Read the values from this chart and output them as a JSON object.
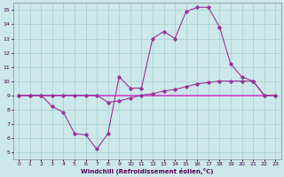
{
  "xlabel": "Windchill (Refroidissement éolien,°C)",
  "bg_color": "#cce8ea",
  "grid_color": "#aacccc",
  "line_color1": "#993399",
  "line_color2": "#993399",
  "line_color3": "#cc44cc",
  "xlim": [
    -0.5,
    23.5
  ],
  "ylim": [
    4.5,
    15.5
  ],
  "xticks": [
    0,
    1,
    2,
    3,
    4,
    5,
    6,
    7,
    8,
    9,
    10,
    11,
    12,
    13,
    14,
    15,
    16,
    17,
    18,
    19,
    20,
    21,
    22,
    23
  ],
  "yticks": [
    5,
    6,
    7,
    8,
    9,
    10,
    11,
    12,
    13,
    14,
    15
  ],
  "line1_x": [
    0,
    1,
    2,
    3,
    4,
    5,
    6,
    7,
    8,
    9,
    10,
    11,
    12,
    13,
    14,
    15,
    16,
    17,
    18,
    19,
    20,
    21,
    22,
    23
  ],
  "line1_y": [
    9.0,
    9.0,
    9.0,
    8.2,
    7.8,
    6.3,
    6.2,
    5.2,
    6.3,
    10.3,
    9.5,
    9.5,
    13.0,
    13.5,
    13.0,
    14.9,
    15.2,
    15.2,
    13.8,
    11.2,
    10.3,
    10.0,
    9.0,
    9.0
  ],
  "line2_x": [
    0,
    1,
    2,
    3,
    4,
    5,
    6,
    7,
    8,
    9,
    10,
    11,
    12,
    13,
    14,
    15,
    16,
    17,
    18,
    19,
    20,
    21,
    22,
    23
  ],
  "line2_y": [
    9.0,
    9.0,
    9.0,
    9.0,
    9.0,
    9.0,
    9.0,
    9.0,
    8.5,
    8.6,
    8.8,
    9.0,
    9.1,
    9.3,
    9.4,
    9.6,
    9.8,
    9.9,
    10.0,
    10.0,
    10.0,
    10.0,
    9.0,
    9.0
  ],
  "line3_x": [
    0,
    1,
    2,
    3,
    4,
    5,
    6,
    7,
    8,
    9,
    10,
    11,
    12,
    13,
    14,
    15,
    16,
    17,
    18,
    19,
    20,
    21,
    22,
    23
  ],
  "line3_y": [
    9.0,
    9.0,
    9.0,
    9.0,
    9.0,
    9.0,
    9.0,
    9.0,
    9.0,
    9.0,
    9.0,
    9.0,
    9.0,
    9.0,
    9.0,
    9.0,
    9.0,
    9.0,
    9.0,
    9.0,
    9.0,
    9.0,
    9.0,
    9.0
  ]
}
